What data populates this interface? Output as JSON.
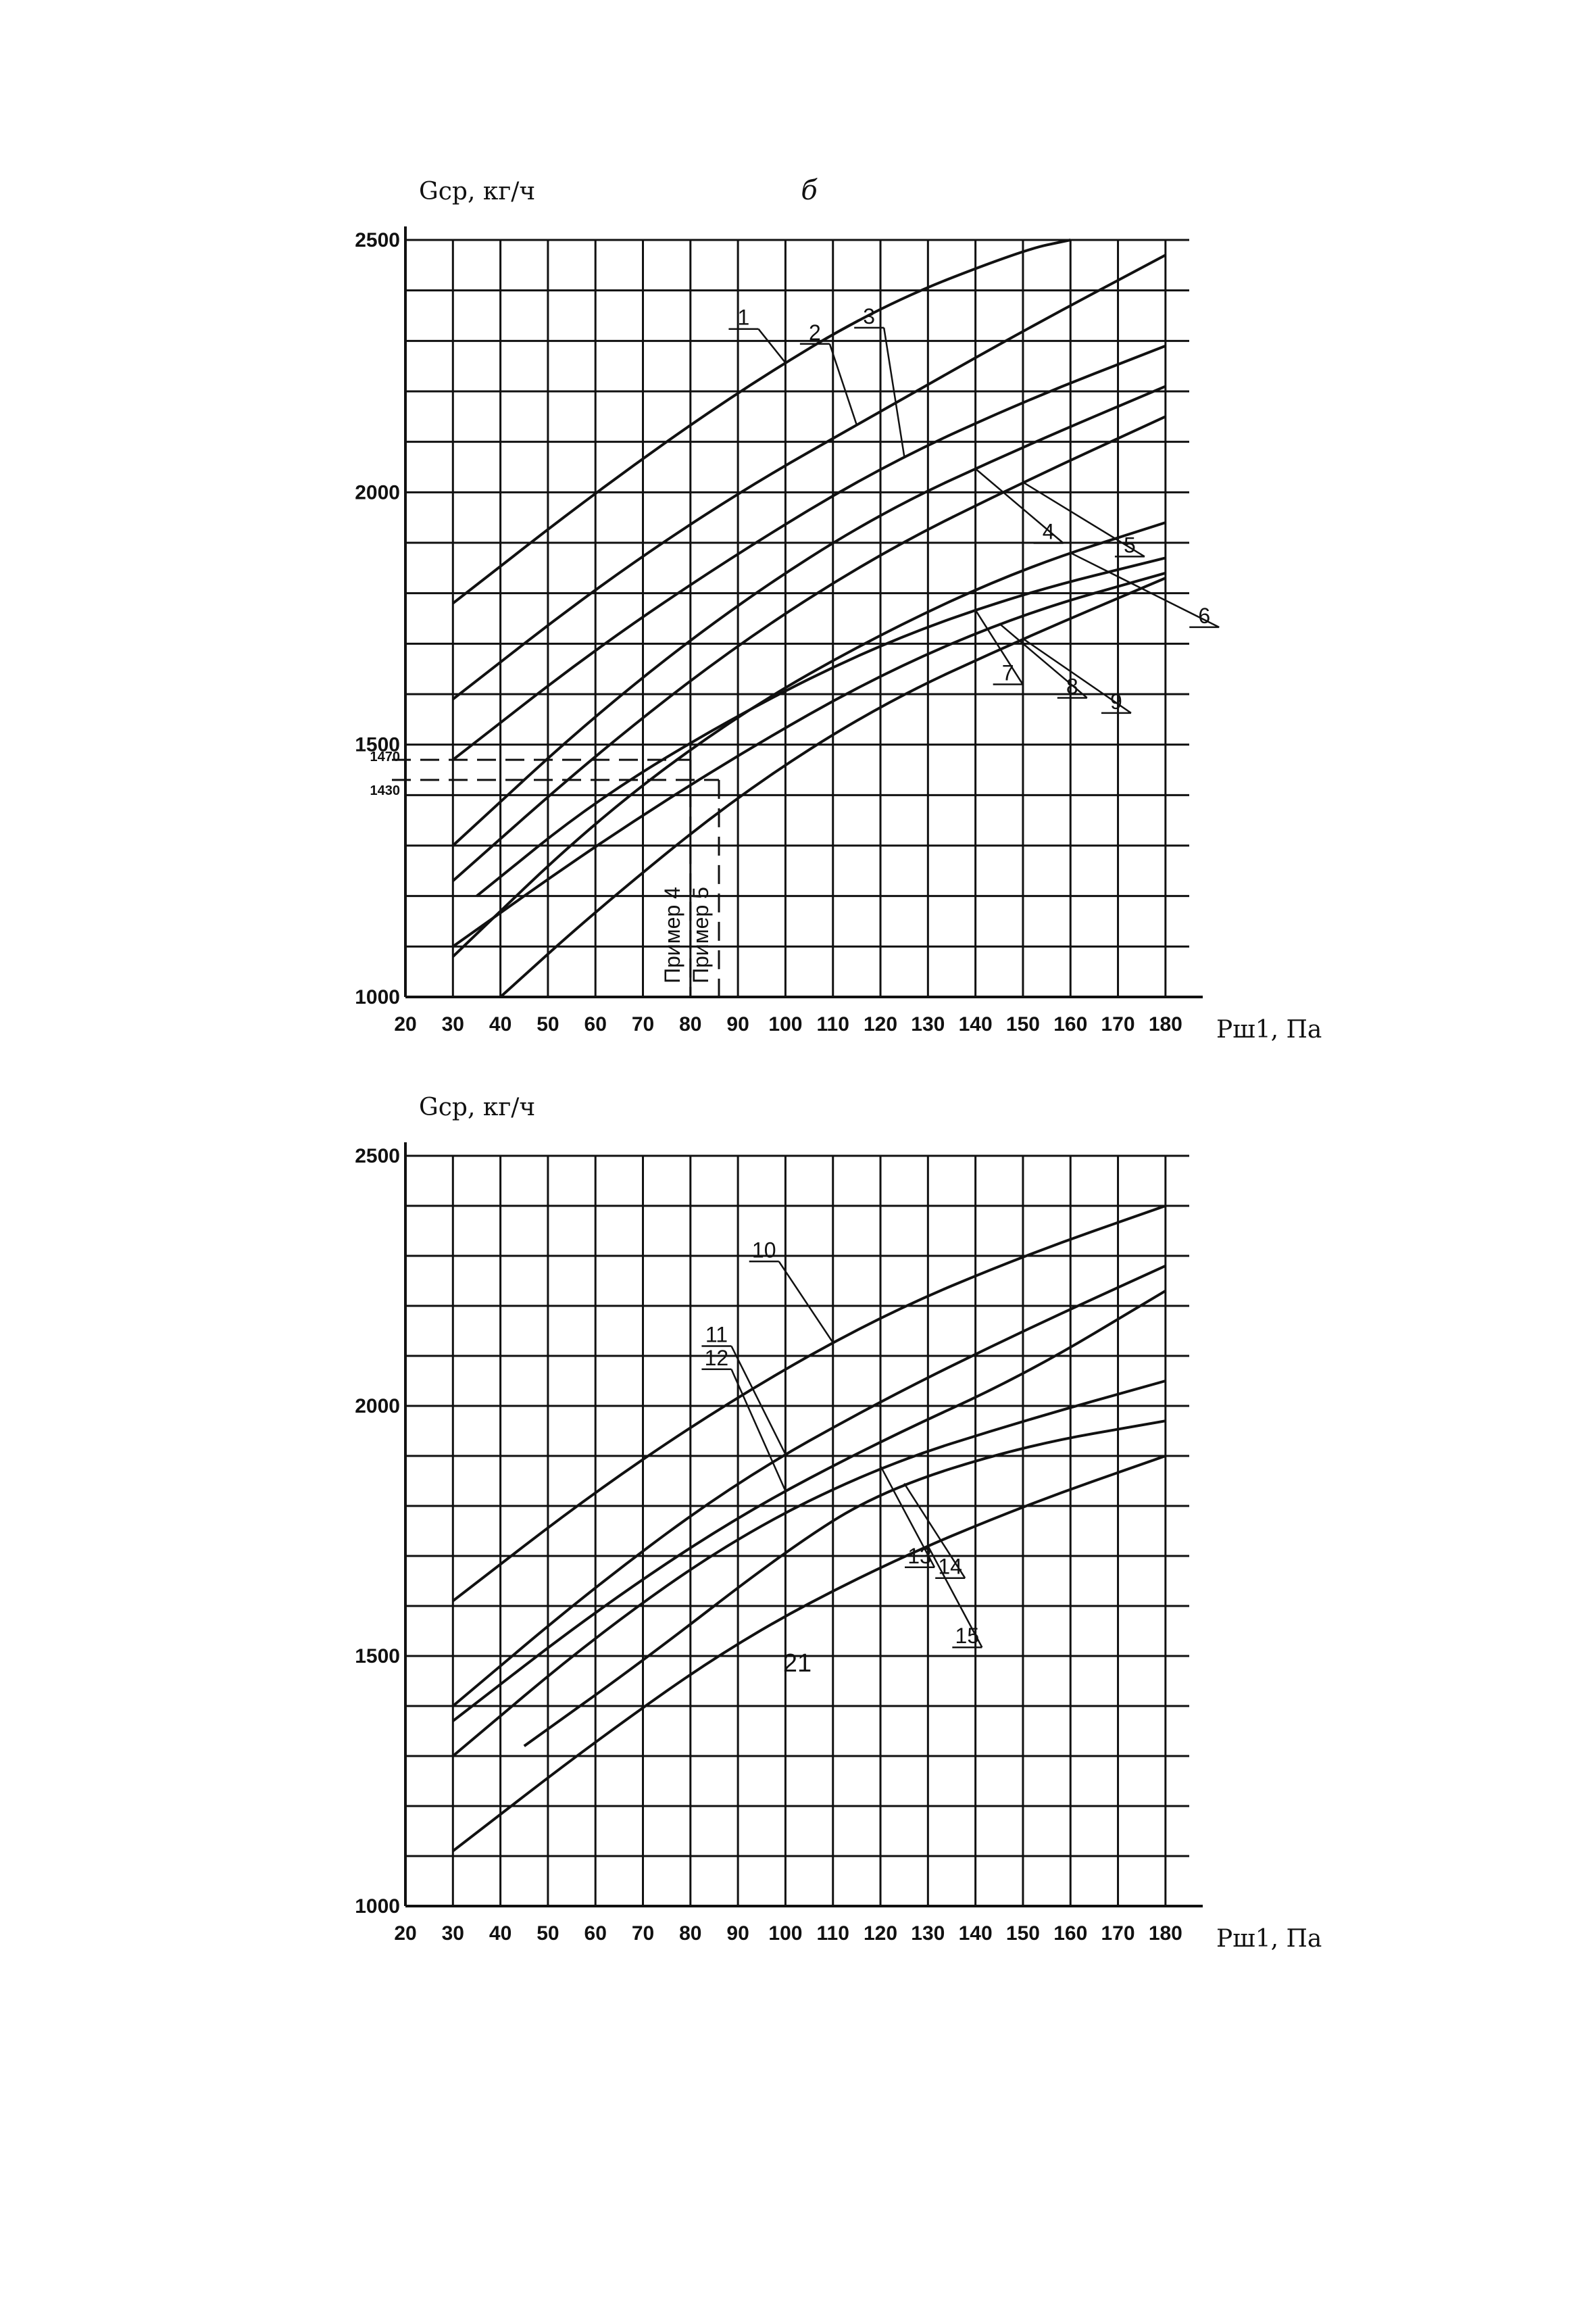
{
  "page_number": "21",
  "chart_data": [
    {
      "type": "line",
      "panel_label": "б",
      "ylabel": "Gср, кг/ч",
      "xlabel": "Pш1, Па",
      "xlim": [
        20,
        185
      ],
      "ylim": [
        1000,
        2500
      ],
      "x_ticks": [
        20,
        30,
        40,
        50,
        60,
        70,
        80,
        90,
        100,
        110,
        120,
        130,
        140,
        150,
        160,
        170,
        180
      ],
      "y_ticks": [
        1000,
        1430,
        1470,
        1500,
        2000,
        2500
      ],
      "grid": true,
      "series": [
        {
          "name": "1",
          "x": [
            30,
            60,
            90,
            120,
            150,
            160
          ],
          "y": [
            1780,
            2000,
            2200,
            2370,
            2480,
            2500
          ]
        },
        {
          "name": "2",
          "x": [
            30,
            60,
            90,
            120,
            150,
            180
          ],
          "y": [
            1590,
            1810,
            2000,
            2160,
            2320,
            2470
          ]
        },
        {
          "name": "3",
          "x": [
            30,
            60,
            90,
            120,
            150,
            180
          ],
          "y": [
            1470,
            1690,
            1880,
            2050,
            2180,
            2290
          ]
        },
        {
          "name": "4",
          "x": [
            30,
            60,
            90,
            120,
            150,
            180
          ],
          "y": [
            1300,
            1560,
            1780,
            1960,
            2090,
            2210
          ]
        },
        {
          "name": "5",
          "x": [
            30,
            60,
            90,
            120,
            150,
            180
          ],
          "y": [
            1230,
            1480,
            1700,
            1880,
            2020,
            2150
          ]
        },
        {
          "name": "6",
          "x": [
            30,
            60,
            90,
            120,
            150,
            180
          ],
          "y": [
            1080,
            1350,
            1560,
            1720,
            1850,
            1940
          ]
        },
        {
          "name": "7",
          "x": [
            35,
            60,
            90,
            120,
            150,
            180
          ],
          "y": [
            1200,
            1390,
            1560,
            1700,
            1800,
            1870
          ]
        },
        {
          "name": "8",
          "x": [
            30,
            60,
            90,
            120,
            150,
            180
          ],
          "y": [
            1100,
            1300,
            1480,
            1640,
            1760,
            1840
          ]
        },
        {
          "name": "9",
          "x": [
            40,
            60,
            90,
            120,
            150,
            180
          ],
          "y": [
            1000,
            1170,
            1400,
            1580,
            1710,
            1830
          ]
        }
      ],
      "reference_lines": [
        {
          "label": "Пример 4",
          "y": 1470,
          "x": 80
        },
        {
          "label": "Пример 5",
          "y": 1430,
          "x": 86
        }
      ]
    },
    {
      "type": "line",
      "ylabel": "Gср, кг/ч",
      "xlabel": "Pш1, Па",
      "xlim": [
        20,
        185
      ],
      "ylim": [
        1000,
        2500
      ],
      "x_ticks": [
        20,
        30,
        40,
        50,
        60,
        70,
        80,
        90,
        100,
        110,
        120,
        130,
        140,
        150,
        160,
        170,
        180
      ],
      "y_ticks": [
        1000,
        1500,
        2000,
        2500
      ],
      "grid": true,
      "series": [
        {
          "name": "10",
          "x": [
            30,
            60,
            90,
            120,
            150,
            180
          ],
          "y": [
            1610,
            1830,
            2020,
            2180,
            2300,
            2400
          ]
        },
        {
          "name": "11",
          "x": [
            30,
            60,
            90,
            120,
            150,
            180
          ],
          "y": [
            1400,
            1640,
            1850,
            2010,
            2150,
            2280
          ]
        },
        {
          "name": "12",
          "x": [
            30,
            60,
            90,
            120,
            150,
            180
          ],
          "y": [
            1370,
            1590,
            1780,
            1930,
            2060,
            2230
          ]
        },
        {
          "name": "13",
          "x": [
            30,
            60,
            90,
            120,
            150,
            180
          ],
          "y": [
            1300,
            1540,
            1740,
            1880,
            1970,
            2050
          ]
        },
        {
          "name": "14",
          "x": [
            45,
            70,
            100,
            120,
            150,
            180
          ],
          "y": [
            1320,
            1490,
            1710,
            1830,
            1920,
            1970
          ]
        },
        {
          "name": "15",
          "x": [
            30,
            60,
            90,
            120,
            150,
            180
          ],
          "y": [
            1110,
            1330,
            1530,
            1680,
            1800,
            1900
          ]
        }
      ]
    }
  ]
}
